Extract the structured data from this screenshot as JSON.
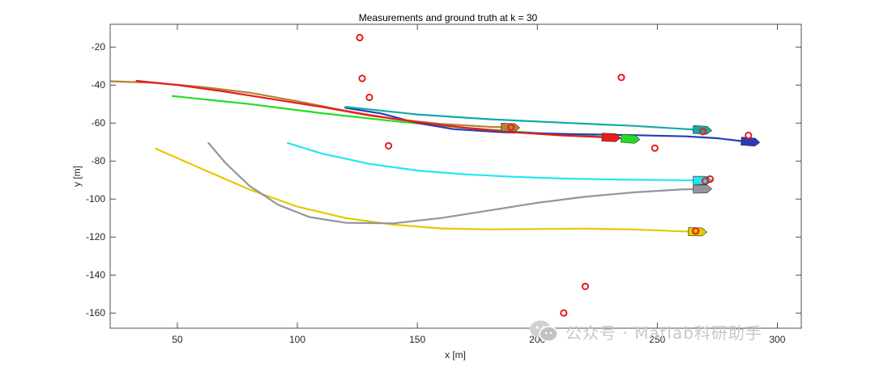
{
  "chart_data": {
    "type": "line",
    "title": "Measurements and ground truth at k = 30",
    "xlabel": "x [m]",
    "ylabel": "y [m]",
    "xlim": [
      22,
      310
    ],
    "ylim": [
      -168,
      -8
    ],
    "xticks": [
      50,
      100,
      150,
      200,
      250,
      300
    ],
    "yticks": [
      -160,
      -140,
      -120,
      -100,
      -80,
      -60,
      -40,
      -20
    ],
    "grid": false,
    "series": [
      {
        "color": "#e6c800",
        "marker": "boat",
        "points": [
          [
            41,
            -73.5
          ],
          [
            60,
            -84
          ],
          [
            80,
            -95
          ],
          [
            100,
            -104
          ],
          [
            120,
            -110
          ],
          [
            140,
            -113.5
          ],
          [
            160,
            -115.5
          ],
          [
            180,
            -116
          ],
          [
            200,
            -115.8
          ],
          [
            220,
            -115.6
          ],
          [
            240,
            -116
          ],
          [
            260,
            -117
          ],
          [
            268,
            -117.3
          ]
        ]
      },
      {
        "color": "#9494a2",
        "marker": "boat",
        "points": [
          [
            63,
            -70.5
          ],
          [
            70,
            -81
          ],
          [
            80,
            -93
          ],
          [
            92,
            -103
          ],
          [
            105,
            -109.5
          ],
          [
            120,
            -112.5
          ],
          [
            140,
            -112.8
          ],
          [
            160,
            -110
          ],
          [
            180,
            -106
          ],
          [
            200,
            -102
          ],
          [
            220,
            -98.8
          ],
          [
            240,
            -96.5
          ],
          [
            260,
            -95
          ],
          [
            270,
            -94.7
          ]
        ]
      },
      {
        "color": "#22e6f0",
        "marker": "boat",
        "points": [
          [
            96,
            -70.5
          ],
          [
            110,
            -76
          ],
          [
            130,
            -81.5
          ],
          [
            150,
            -85
          ],
          [
            170,
            -87
          ],
          [
            190,
            -88.3
          ],
          [
            210,
            -89.2
          ],
          [
            230,
            -89.7
          ],
          [
            250,
            -90
          ],
          [
            270,
            -90.2
          ]
        ]
      },
      {
        "color": "#22dd22",
        "marker": "boat",
        "points": [
          [
            48,
            -45.8
          ],
          [
            80,
            -50
          ],
          [
            110,
            -54.8
          ],
          [
            140,
            -59
          ],
          [
            170,
            -62.5
          ],
          [
            200,
            -65.3
          ],
          [
            220,
            -66.7
          ],
          [
            240,
            -68.5
          ]
        ]
      },
      {
        "color": "#2b3ab8",
        "marker": "boat",
        "points": [
          [
            120,
            -52
          ],
          [
            135,
            -55
          ],
          [
            150,
            -60
          ],
          [
            165,
            -63.2
          ],
          [
            185,
            -64.8
          ],
          [
            210,
            -65.7
          ],
          [
            240,
            -66.4
          ],
          [
            262,
            -67
          ],
          [
            275,
            -68
          ],
          [
            285,
            -69.5
          ],
          [
            290,
            -70
          ]
        ]
      },
      {
        "color": "#14a8a8",
        "marker": "boat",
        "points": [
          [
            120,
            -51.5
          ],
          [
            150,
            -55.5
          ],
          [
            180,
            -58
          ],
          [
            210,
            -59.8
          ],
          [
            240,
            -61.5
          ],
          [
            260,
            -63
          ],
          [
            270,
            -63.8
          ]
        ]
      },
      {
        "color": "#b7813a",
        "marker": "boat",
        "points": [
          [
            22,
            -38
          ],
          [
            40,
            -38.8
          ],
          [
            60,
            -41
          ],
          [
            80,
            -44
          ],
          [
            100,
            -48.5
          ],
          [
            120,
            -53.5
          ],
          [
            140,
            -57.8
          ],
          [
            160,
            -60.5
          ],
          [
            180,
            -62
          ],
          [
            190,
            -62.4
          ]
        ]
      },
      {
        "color": "#e61c1c",
        "marker": "boat",
        "points": [
          [
            33,
            -37.8
          ],
          [
            50,
            -40
          ],
          [
            70,
            -43.5
          ],
          [
            90,
            -47.5
          ],
          [
            110,
            -51.5
          ],
          [
            130,
            -56
          ],
          [
            150,
            -59.5
          ],
          [
            170,
            -62.5
          ],
          [
            190,
            -64.8
          ],
          [
            210,
            -66.5
          ],
          [
            232,
            -67.7
          ]
        ]
      }
    ],
    "measurements": {
      "color": "#e61c1c",
      "points": [
        [
          126,
          -15
        ],
        [
          127,
          -36.5
        ],
        [
          130,
          -46.5
        ],
        [
          138,
          -72
        ],
        [
          235,
          -36
        ],
        [
          189,
          -62.3
        ],
        [
          269,
          -64.5
        ],
        [
          288,
          -66.5
        ],
        [
          249,
          -73.2
        ],
        [
          272,
          -89.5
        ],
        [
          270,
          -90.5
        ],
        [
          266,
          -116.8
        ],
        [
          220,
          -146
        ],
        [
          211,
          -160
        ]
      ]
    }
  },
  "watermark": {
    "text": "公众号 · Matlab科研助手"
  }
}
